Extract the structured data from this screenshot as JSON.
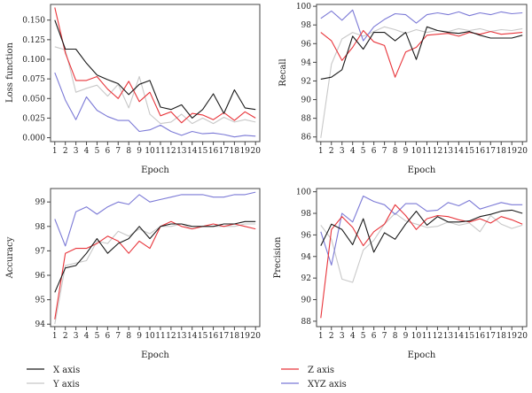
{
  "x_ticks": [
    1,
    2,
    3,
    4,
    5,
    6,
    7,
    8,
    9,
    10,
    11,
    12,
    13,
    14,
    15,
    16,
    17,
    18,
    19,
    20
  ],
  "legend": [
    {
      "label": "X axis",
      "color": "#1a1a1a"
    },
    {
      "label": "Z axis",
      "color": "#e8343a"
    },
    {
      "label": "Y axis",
      "color": "#c8c8c8"
    },
    {
      "label": "XYZ axis",
      "color": "#7b79d6"
    }
  ],
  "chart_data": [
    {
      "type": "line",
      "xlabel": "Epoch",
      "ylabel": "Loss function",
      "ylim": [
        -0.005,
        0.17
      ],
      "yticks": [
        "0.000",
        "0.025",
        "0.050",
        "0.075",
        "0.100",
        "0.125",
        "0.150"
      ],
      "ytick_values": [
        0,
        0.025,
        0.05,
        0.075,
        0.1,
        0.125,
        0.15
      ],
      "x": [
        1,
        2,
        3,
        4,
        5,
        6,
        7,
        8,
        9,
        10,
        11,
        12,
        13,
        14,
        15,
        16,
        17,
        18,
        19,
        20
      ],
      "series": [
        {
          "name": "X axis",
          "color": "#1a1a1a",
          "values": [
            0.15,
            0.113,
            0.113,
            0.095,
            0.08,
            0.074,
            0.069,
            0.055,
            0.068,
            0.073,
            0.039,
            0.036,
            0.042,
            0.025,
            0.036,
            0.056,
            0.031,
            0.061,
            0.038,
            0.036
          ]
        },
        {
          "name": "Z axis",
          "color": "#e8343a",
          "values": [
            0.166,
            0.108,
            0.073,
            0.073,
            0.078,
            0.062,
            0.05,
            0.072,
            0.046,
            0.058,
            0.028,
            0.033,
            0.019,
            0.031,
            0.029,
            0.023,
            0.032,
            0.022,
            0.033,
            0.025
          ]
        },
        {
          "name": "Y axis",
          "color": "#c8c8c8",
          "values": [
            0.116,
            0.112,
            0.058,
            0.063,
            0.067,
            0.053,
            0.068,
            0.038,
            0.078,
            0.03,
            0.018,
            0.02,
            0.03,
            0.018,
            0.025,
            0.018,
            0.026,
            0.02,
            0.023,
            0.02
          ]
        },
        {
          "name": "XYZ axis",
          "color": "#7b79d6",
          "values": [
            0.083,
            0.048,
            0.023,
            0.052,
            0.035,
            0.027,
            0.022,
            0.022,
            0.008,
            0.01,
            0.016,
            0.008,
            0.003,
            0.008,
            0.005,
            0.006,
            0.004,
            0.001,
            0.003,
            0.002
          ]
        }
      ]
    },
    {
      "type": "line",
      "xlabel": "Epoch",
      "ylabel": "Recall",
      "ylim": [
        85.5,
        100.2
      ],
      "yticks": [
        "86",
        "88",
        "90",
        "92",
        "94",
        "96",
        "98",
        "100"
      ],
      "ytick_values": [
        86,
        88,
        90,
        92,
        94,
        96,
        98,
        100
      ],
      "x": [
        1,
        2,
        3,
        4,
        5,
        6,
        7,
        8,
        9,
        10,
        11,
        12,
        13,
        14,
        15,
        16,
        17,
        18,
        19,
        20
      ],
      "series": [
        {
          "name": "X axis",
          "color": "#1a1a1a",
          "values": [
            92.2,
            92.4,
            93.2,
            96.8,
            95.4,
            97.2,
            97.2,
            96.3,
            97.2,
            94.3,
            97.8,
            97.4,
            97.2,
            97.1,
            97.3,
            96.9,
            96.6,
            96.6,
            96.6,
            96.9
          ]
        },
        {
          "name": "Z axis",
          "color": "#e8343a",
          "values": [
            97.2,
            96.3,
            94.2,
            95.6,
            97.4,
            96.2,
            95.8,
            92.4,
            95.1,
            95.6,
            96.9,
            97.0,
            97.1,
            96.8,
            97.2,
            97.0,
            97.3,
            97.0,
            97.1,
            97.2
          ]
        },
        {
          "name": "Y axis",
          "color": "#c8c8c8",
          "values": [
            85.9,
            93.8,
            96.5,
            97.2,
            96.8,
            97.3,
            97.8,
            97.5,
            97.1,
            97.5,
            97.2,
            97.4,
            97.3,
            97.6,
            97.4,
            97.6,
            97.3,
            97.5,
            97.4,
            97.6
          ]
        },
        {
          "name": "XYZ axis",
          "color": "#7b79d6",
          "values": [
            98.7,
            99.5,
            98.5,
            99.6,
            96.3,
            97.8,
            98.6,
            99.2,
            99.1,
            98.2,
            99.1,
            99.3,
            99.1,
            99.4,
            99.0,
            99.3,
            99.1,
            99.4,
            99.2,
            99.3
          ]
        }
      ]
    },
    {
      "type": "line",
      "xlabel": "Epoch",
      "ylabel": "Accuracy",
      "ylim": [
        93.9,
        99.55
      ],
      "yticks": [
        "94",
        "95",
        "96",
        "97",
        "98",
        "99"
      ],
      "ytick_values": [
        94,
        95,
        96,
        97,
        98,
        99
      ],
      "x": [
        1,
        2,
        3,
        4,
        5,
        6,
        7,
        8,
        9,
        10,
        11,
        12,
        13,
        14,
        15,
        16,
        17,
        18,
        19,
        20
      ],
      "series": [
        {
          "name": "X axis",
          "color": "#1a1a1a",
          "values": [
            95.3,
            96.3,
            96.4,
            96.9,
            97.5,
            96.9,
            97.3,
            97.5,
            98.0,
            97.5,
            98.0,
            98.1,
            98.1,
            98.0,
            98.0,
            98.0,
            98.1,
            98.1,
            98.2,
            98.2
          ]
        },
        {
          "name": "Z axis",
          "color": "#e8343a",
          "values": [
            94.2,
            96.9,
            97.1,
            97.1,
            97.3,
            97.6,
            97.4,
            96.9,
            97.4,
            97.1,
            98.0,
            98.2,
            98.0,
            97.9,
            98.0,
            98.1,
            98.0,
            98.1,
            98.0,
            97.9
          ]
        },
        {
          "name": "Y axis",
          "color": "#c8c8c8",
          "values": [
            94.0,
            96.4,
            96.5,
            96.6,
            97.4,
            97.3,
            97.8,
            97.6,
            97.9,
            97.7,
            98.0,
            98.0,
            98.1,
            97.9,
            98.0,
            98.0,
            98.0,
            98.0,
            98.1,
            98.1
          ]
        },
        {
          "name": "XYZ axis",
          "color": "#7b79d6",
          "values": [
            98.3,
            97.2,
            98.6,
            98.8,
            98.5,
            98.8,
            99.0,
            98.9,
            99.3,
            99.0,
            99.1,
            99.2,
            99.3,
            99.3,
            99.3,
            99.2,
            99.2,
            99.3,
            99.3,
            99.4
          ]
        }
      ]
    },
    {
      "type": "line",
      "xlabel": "Epoch",
      "ylabel": "Precision",
      "ylim": [
        87.5,
        100.3
      ],
      "yticks": [
        "88",
        "90",
        "92",
        "94",
        "96",
        "98",
        "100"
      ],
      "ytick_values": [
        88,
        90,
        92,
        94,
        96,
        98,
        100
      ],
      "x": [
        1,
        2,
        3,
        4,
        5,
        6,
        7,
        8,
        9,
        10,
        11,
        12,
        13,
        14,
        15,
        16,
        17,
        18,
        19,
        20
      ],
      "series": [
        {
          "name": "X axis",
          "color": "#1a1a1a",
          "values": [
            95.0,
            97.0,
            96.5,
            95.1,
            97.5,
            94.4,
            96.2,
            95.6,
            97.0,
            98.2,
            96.9,
            97.7,
            97.2,
            97.2,
            97.3,
            97.7,
            97.9,
            98.2,
            98.3,
            98.0
          ]
        },
        {
          "name": "Z axis",
          "color": "#e8343a",
          "values": [
            88.3,
            96.5,
            97.7,
            96.7,
            95.0,
            96.3,
            97.0,
            98.8,
            97.8,
            96.5,
            97.5,
            97.8,
            97.7,
            97.4,
            97.2,
            97.5,
            97.1,
            97.7,
            97.4,
            97.0
          ]
        },
        {
          "name": "Y axis",
          "color": "#c8c8c8",
          "values": [
            96.9,
            95.6,
            91.9,
            91.6,
            94.6,
            95.5,
            97.0,
            98.0,
            97.3,
            97.0,
            96.7,
            96.8,
            97.2,
            96.9,
            97.1,
            96.3,
            97.8,
            97.0,
            96.6,
            96.9
          ]
        },
        {
          "name": "XYZ axis",
          "color": "#7b79d6",
          "values": [
            96.3,
            93.2,
            98.0,
            97.2,
            99.6,
            99.1,
            98.8,
            97.9,
            98.9,
            98.9,
            98.2,
            98.3,
            99.0,
            98.7,
            99.2,
            98.4,
            98.7,
            99.0,
            98.8,
            98.8
          ]
        }
      ]
    }
  ]
}
